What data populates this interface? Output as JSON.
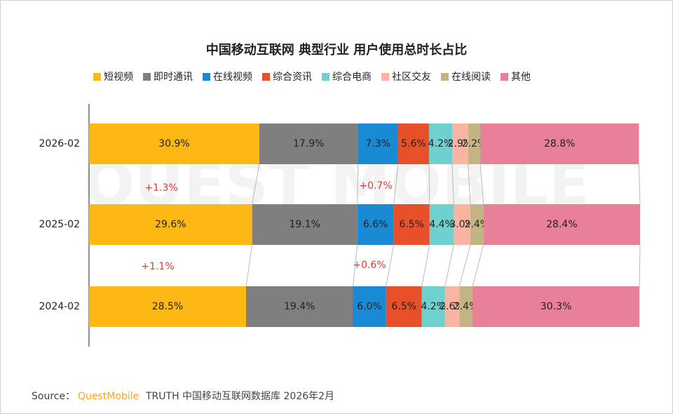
{
  "chart_data": {
    "type": "stacked-bar-horizontal",
    "title": "中国移动互联网 典型行业 用户使用总时长占比",
    "categories": [
      "2026-02",
      "2025-02",
      "2024-02"
    ],
    "xlim": [
      0,
      100
    ],
    "series": [
      {
        "name": "短视频",
        "color": "#fdb813",
        "values": [
          30.9,
          29.6,
          28.5
        ],
        "value_labels": [
          "30.9%",
          "29.6%",
          "28.5%"
        ]
      },
      {
        "name": "即时通讯",
        "color": "#7f7f7f",
        "values": [
          17.9,
          19.1,
          19.4
        ],
        "value_labels": [
          "17.9%",
          "19.1%",
          "19.4%"
        ]
      },
      {
        "name": "在线视频",
        "color": "#1a8ad4",
        "values": [
          7.3,
          6.6,
          6.0
        ],
        "value_labels": [
          "7.3%",
          "6.6%",
          "6.0%"
        ]
      },
      {
        "name": "综合资讯",
        "color": "#e8502a",
        "values": [
          5.6,
          6.5,
          6.5
        ],
        "value_labels": [
          "5.6%",
          "6.5%",
          "6.5%"
        ]
      },
      {
        "name": "综合电商",
        "color": "#6ed0cf",
        "values": [
          4.2,
          4.4,
          4.2
        ],
        "value_labels": [
          "4.2%",
          "4.4%",
          "4.2%"
        ]
      },
      {
        "name": "社区交友",
        "color": "#f9b4a2",
        "values": [
          2.9,
          3.0,
          2.6
        ],
        "value_labels": [
          "2.9%",
          "3.0%",
          "2.6%"
        ]
      },
      {
        "name": "在线阅读",
        "color": "#c2b483",
        "values": [
          2.2,
          2.4,
          2.4
        ],
        "value_labels": [
          "2.2%",
          "2.4%",
          "2.4%"
        ]
      },
      {
        "name": "其他",
        "color": "#e8809a",
        "values": [
          28.8,
          28.4,
          30.3
        ],
        "value_labels": [
          "28.8%",
          "28.4%",
          "30.3%"
        ]
      }
    ],
    "annotations": [
      "+1.3%",
      "+0.7%",
      "+1.1%",
      "+0.6%"
    ],
    "watermark": "QUEST MOBILE",
    "source": {
      "prefix": "Source：",
      "brand": "QuestMobile",
      "text": "TRUTH 中国移动互联网数据库 2026年2月"
    }
  }
}
